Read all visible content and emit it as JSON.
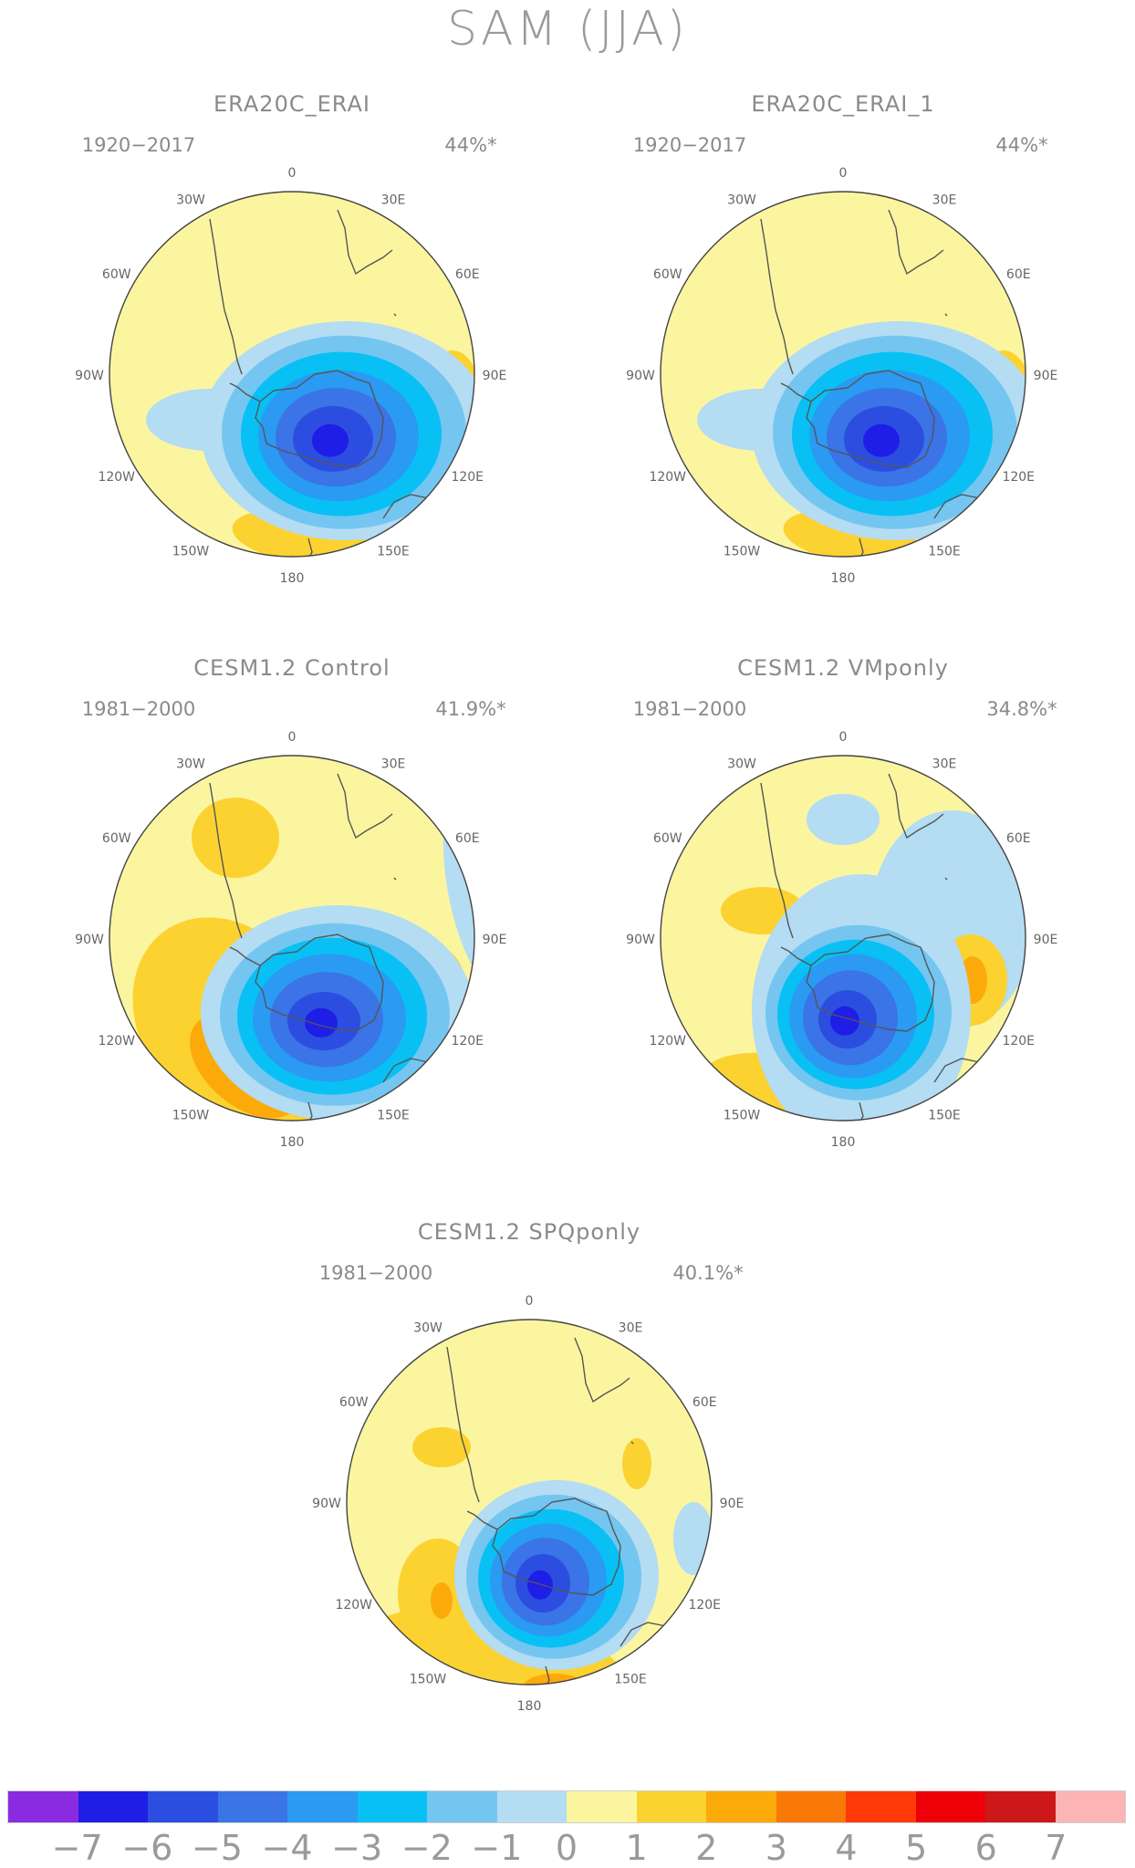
{
  "title": "SAM (JJA)",
  "lon_labels": [
    "0",
    "30E",
    "60E",
    "90E",
    "120E",
    "150E",
    "180",
    "150W",
    "120W",
    "90W",
    "60W",
    "30W"
  ],
  "colorbar": {
    "colors": [
      "#8a2be2",
      "#1e1ee6",
      "#2c4ee0",
      "#3a74e6",
      "#2a9af2",
      "#08c0f4",
      "#74c6f0",
      "#b4dcf2",
      "#fbf5a0",
      "#fbd230",
      "#fbaa0a",
      "#f87808",
      "#ff3a08",
      "#ee0008",
      "#cc1818",
      "#fcb4b4"
    ],
    "labels": [
      "−7",
      "−6",
      "−5",
      "−4",
      "−3",
      "−2",
      "−1",
      "0",
      "1",
      "2",
      "3",
      "4",
      "5",
      "6",
      "7"
    ]
  },
  "panels": [
    {
      "id": "era20c-erai",
      "title": "ERA20C_ERAI",
      "period": "1920−2017",
      "variance": "44%*",
      "ax": 62,
      "ay": 88,
      "variant": "era"
    },
    {
      "id": "era20c-erai-1",
      "title": "ERA20C_ERAI_1",
      "period": "1920−2017",
      "variance": "44%*",
      "ax": 666,
      "ay": 88,
      "variant": "era"
    },
    {
      "id": "cesm-control",
      "title": "CESM1.2 Control",
      "period": "1981−2000",
      "variance": "41.9%*",
      "ax": 62,
      "ay": 706,
      "variant": "control"
    },
    {
      "id": "cesm-vmponly",
      "title": "CESM1.2 VMponly",
      "period": "1981−2000",
      "variance": "34.8%*",
      "ax": 666,
      "ay": 706,
      "variant": "vmp"
    },
    {
      "id": "cesm-spqponly",
      "title": "CESM1.2 SPQponly",
      "period": "1981−2000",
      "variance": "40.1%*",
      "ax": 322,
      "ay": 1324,
      "variant": "spq"
    }
  ]
}
